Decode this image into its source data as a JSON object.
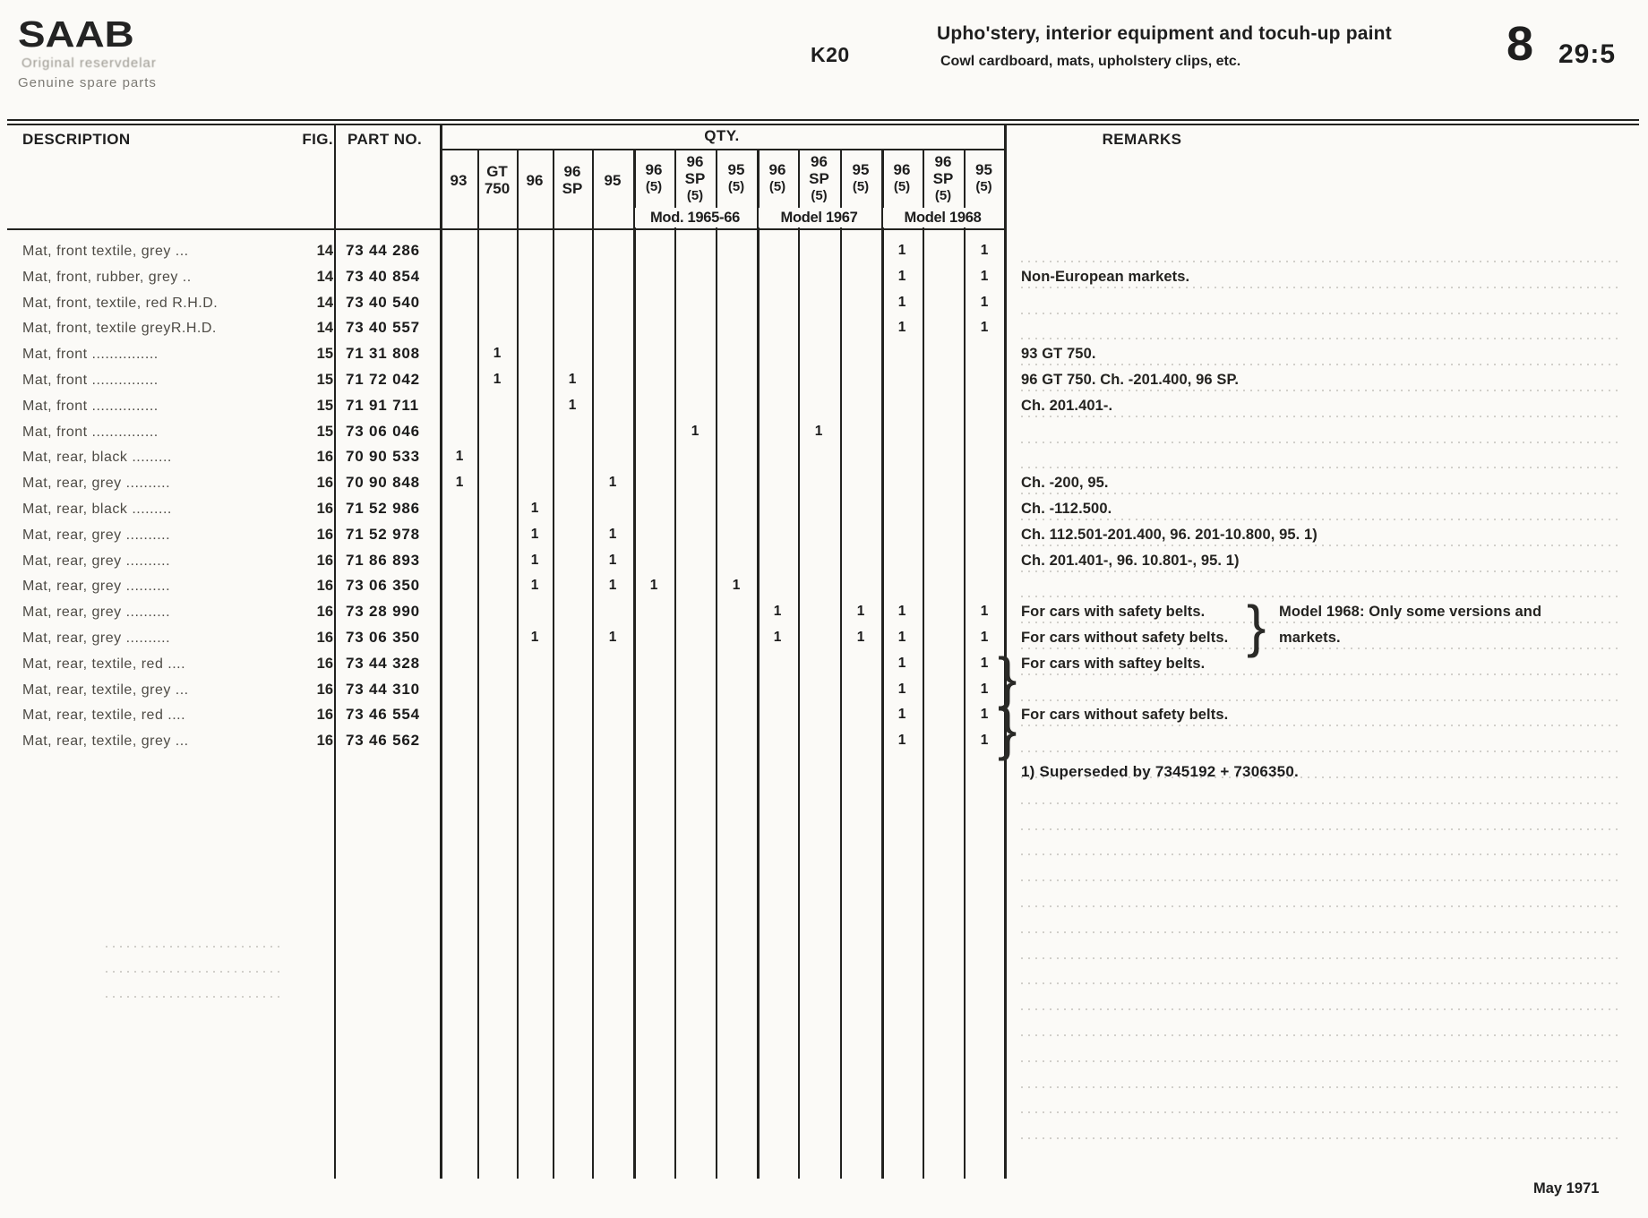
{
  "page": {
    "brand": {
      "logo": "SAAB",
      "tagline_sv": "Original reservdelar",
      "tagline_en": "Genuine spare parts"
    },
    "section_code": "K20",
    "title": "Upho'stery, interior equipment and tocuh-up paint",
    "subtitle": "Cowl cardboard, mats, upholstery clips, etc.",
    "page_group": "8",
    "page_number": "29:5",
    "date": "May 1971",
    "footnote": "1) Superseded by 7345192 + 7306350."
  },
  "table": {
    "headers": {
      "description": "DESCRIPTION",
      "fig": "FIG.",
      "part_no": "PART NO.",
      "qty": "QTY.",
      "remarks": "REMARKS"
    },
    "qty_main_columns": [
      [
        "93"
      ],
      [
        "GT",
        "750"
      ],
      [
        "96"
      ],
      [
        "96",
        "SP"
      ],
      [
        "95"
      ]
    ],
    "qty_groups": [
      {
        "label": "Mod. 1965-66",
        "columns": [
          [
            "96",
            "(5)"
          ],
          [
            "96",
            "SP",
            "(5)"
          ],
          [
            "95",
            "(5)"
          ]
        ]
      },
      {
        "label": "Model 1967",
        "columns": [
          [
            "96",
            "(5)"
          ],
          [
            "96",
            "SP",
            "(5)"
          ],
          [
            "95",
            "(5)"
          ]
        ]
      },
      {
        "label": "Model 1968",
        "columns": [
          [
            "96",
            "(5)"
          ],
          [
            "96",
            "SP",
            "(5)"
          ],
          [
            "95",
            "(5)"
          ]
        ]
      }
    ],
    "rows": [
      {
        "description": "Mat, front textile, grey ...",
        "fig": "14",
        "part_no": "73 44 286",
        "qty": [
          "",
          "",
          "",
          "",
          "",
          "",
          "",
          "",
          "",
          "",
          "",
          "1",
          "",
          "1"
        ],
        "remark": "",
        "remark2": ""
      },
      {
        "description": "Mat, front, rubber, grey ..",
        "fig": "14",
        "part_no": "73 40 854",
        "qty": [
          "",
          "",
          "",
          "",
          "",
          "",
          "",
          "",
          "",
          "",
          "",
          "1",
          "",
          "1"
        ],
        "remark": "Non-European markets.",
        "remark2": ""
      },
      {
        "description": "Mat, front, textile, red R.H.D.",
        "fig": "14",
        "part_no": "73 40 540",
        "qty": [
          "",
          "",
          "",
          "",
          "",
          "",
          "",
          "",
          "",
          "",
          "",
          "1",
          "",
          "1"
        ],
        "remark": "",
        "remark2": ""
      },
      {
        "description": "Mat, front, textile greyR.H.D.",
        "fig": "14",
        "part_no": "73 40 557",
        "qty": [
          "",
          "",
          "",
          "",
          "",
          "",
          "",
          "",
          "",
          "",
          "",
          "1",
          "",
          "1"
        ],
        "remark": "",
        "remark2": ""
      },
      {
        "description": "Mat, front ...............",
        "fig": "15",
        "part_no": "71 31 808",
        "qty": [
          "",
          "1",
          "",
          "",
          "",
          "",
          "",
          "",
          "",
          "",
          "",
          "",
          "",
          ""
        ],
        "remark": "93 GT 750.",
        "remark2": ""
      },
      {
        "description": "Mat, front ...............",
        "fig": "15",
        "part_no": "71 72 042",
        "qty": [
          "",
          "1",
          "",
          "1",
          "",
          "",
          "",
          "",
          "",
          "",
          "",
          "",
          "",
          ""
        ],
        "remark": "96 GT 750. Ch. -201.400, 96 SP.",
        "remark2": ""
      },
      {
        "description": "Mat, front ...............",
        "fig": "15",
        "part_no": "71 91 711",
        "qty": [
          "",
          "",
          "",
          "1",
          "",
          "",
          "",
          "",
          "",
          "",
          "",
          "",
          "",
          ""
        ],
        "remark": "Ch. 201.401-.",
        "remark2": ""
      },
      {
        "description": "Mat, front ...............",
        "fig": "15",
        "part_no": "73 06 046",
        "qty": [
          "",
          "",
          "",
          "",
          "",
          "",
          "1",
          "",
          "",
          "1",
          "",
          "",
          "",
          ""
        ],
        "remark": "",
        "remark2": ""
      },
      {
        "description": "Mat, rear, black .........",
        "fig": "16",
        "part_no": "70 90 533",
        "qty": [
          "1",
          "",
          "",
          "",
          "",
          "",
          "",
          "",
          "",
          "",
          "",
          "",
          "",
          ""
        ],
        "remark": "",
        "remark2": ""
      },
      {
        "description": "Mat, rear, grey ..........",
        "fig": "16",
        "part_no": "70 90 848",
        "qty": [
          "1",
          "",
          "",
          "",
          "1",
          "",
          "",
          "",
          "",
          "",
          "",
          "",
          "",
          ""
        ],
        "remark": "Ch. -200, 95.",
        "remark2": ""
      },
      {
        "description": "Mat, rear, black .........",
        "fig": "16",
        "part_no": "71 52 986",
        "qty": [
          "",
          "",
          "1",
          "",
          "",
          "",
          "",
          "",
          "",
          "",
          "",
          "",
          "",
          ""
        ],
        "remark": "Ch. -112.500.",
        "remark2": ""
      },
      {
        "description": "Mat, rear, grey ..........",
        "fig": "16",
        "part_no": "71 52 978",
        "qty": [
          "",
          "",
          "1",
          "",
          "1",
          "",
          "",
          "",
          "",
          "",
          "",
          "",
          "",
          ""
        ],
        "remark": "Ch. 112.501-201.400, 96. 201-10.800, 95. 1)",
        "remark2": ""
      },
      {
        "description": "Mat, rear, grey ..........",
        "fig": "16",
        "part_no": "71 86 893",
        "qty": [
          "",
          "",
          "1",
          "",
          "1",
          "",
          "",
          "",
          "",
          "",
          "",
          "",
          "",
          ""
        ],
        "remark": "Ch. 201.401-, 96. 10.801-, 95. 1)",
        "remark2": ""
      },
      {
        "description": "Mat, rear, grey ..........",
        "fig": "16",
        "part_no": "73 06 350",
        "qty": [
          "",
          "",
          "1",
          "",
          "1",
          "1",
          "",
          "1",
          "",
          "",
          "",
          "",
          "",
          ""
        ],
        "remark": "",
        "remark2": ""
      },
      {
        "description": "Mat, rear, grey ..........",
        "fig": "16",
        "part_no": "73 28 990",
        "qty": [
          "",
          "",
          "",
          "",
          "",
          "",
          "",
          "",
          "1",
          "",
          "1",
          "1",
          "",
          "1"
        ],
        "remark": "For cars with safety belts.",
        "remark2": "Model 1968: Only some versions and"
      },
      {
        "description": "Mat, rear, grey ..........",
        "fig": "16",
        "part_no": "73 06 350",
        "qty": [
          "",
          "",
          "1",
          "",
          "1",
          "",
          "",
          "",
          "1",
          "",
          "1",
          "1",
          "",
          "1"
        ],
        "remark": "For cars without safety belts.",
        "remark2": "markets."
      },
      {
        "description": "Mat, rear, textile, red ....",
        "fig": "16",
        "part_no": "73 44 328",
        "qty": [
          "",
          "",
          "",
          "",
          "",
          "",
          "",
          "",
          "",
          "",
          "",
          "1",
          "",
          "1"
        ],
        "remark": "For cars with saftey belts.",
        "remark2": ""
      },
      {
        "description": "Mat, rear, textile, grey ...",
        "fig": "16",
        "part_no": "73 44 310",
        "qty": [
          "",
          "",
          "",
          "",
          "",
          "",
          "",
          "",
          "",
          "",
          "",
          "1",
          "",
          "1"
        ],
        "remark": "",
        "remark2": ""
      },
      {
        "description": "Mat, rear, textile, red ....",
        "fig": "16",
        "part_no": "73 46 554",
        "qty": [
          "",
          "",
          "",
          "",
          "",
          "",
          "",
          "",
          "",
          "",
          "",
          "1",
          "",
          "1"
        ],
        "remark": "For cars without safety belts.",
        "remark2": ""
      },
      {
        "description": "Mat, rear, textile, grey ...",
        "fig": "16",
        "part_no": "73 46 562",
        "qty": [
          "",
          "",
          "",
          "",
          "",
          "",
          "",
          "",
          "",
          "",
          "",
          "1",
          "",
          "1"
        ],
        "remark": "",
        "remark2": ""
      }
    ],
    "braces": [
      {
        "glyph": "}",
        "rows": "15-16",
        "position": "after-remark"
      },
      {
        "glyph": "}",
        "rows": "17-18",
        "position": "before-remark"
      },
      {
        "glyph": "}",
        "rows": "19-20",
        "position": "before-remark"
      }
    ]
  }
}
